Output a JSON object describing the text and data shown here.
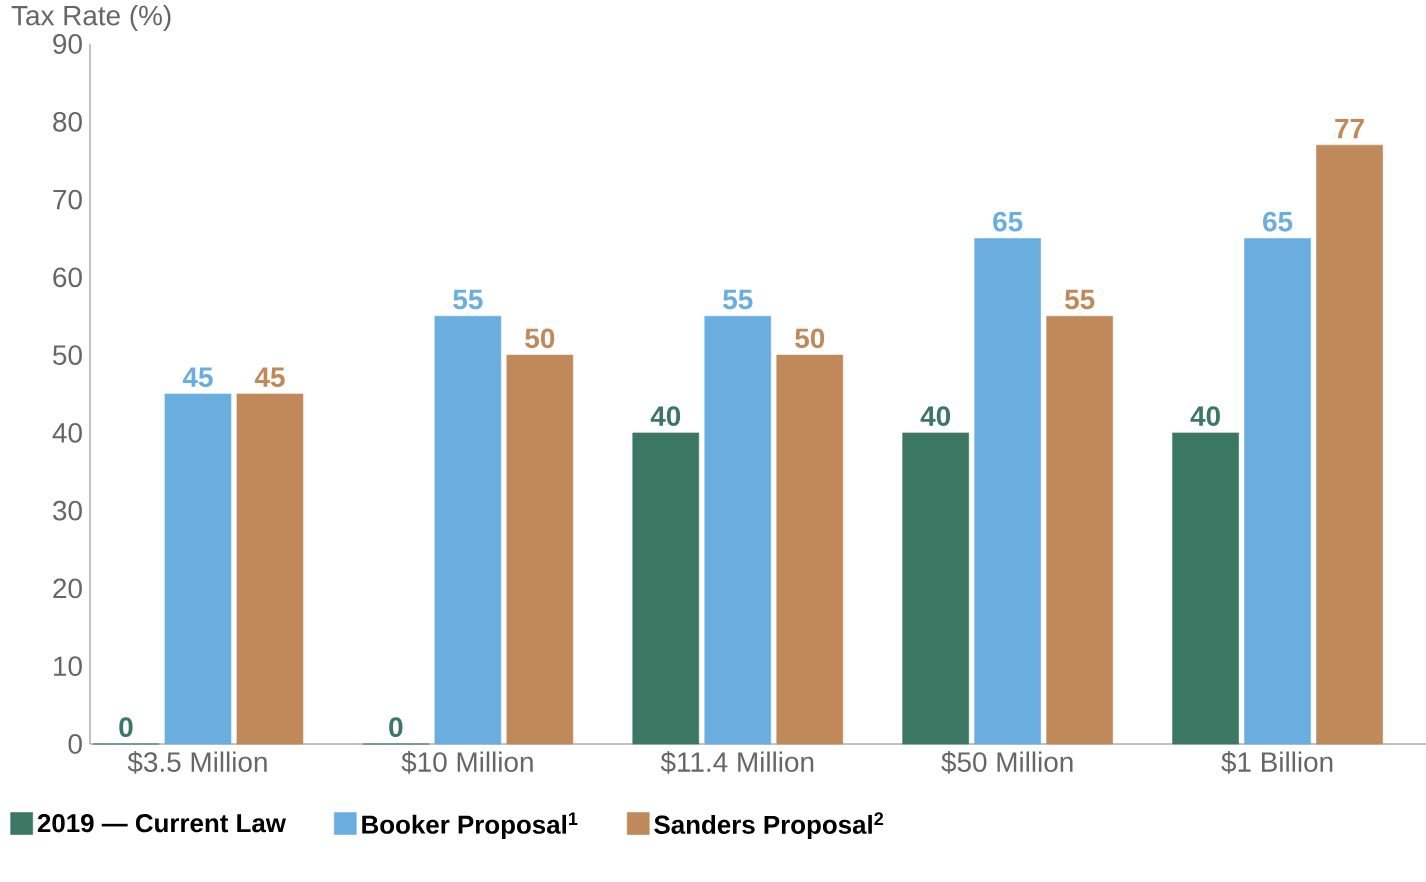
{
  "chart_data": {
    "type": "bar",
    "ylabel": "Tax Rate (%)",
    "categories": [
      "$3.5 Million",
      "$10 Million",
      "$11.4 Million",
      "$50 Million",
      "$1 Billion"
    ],
    "series": [
      {
        "name": "2019 — Current Law",
        "color": "#3b7763",
        "values": [
          0,
          0,
          40,
          40,
          40
        ]
      },
      {
        "name": "Booker Proposal$^{1}$",
        "color": "#6aaee0",
        "values": [
          45,
          55,
          55,
          65,
          65
        ]
      },
      {
        "name": "Sanders Proposal$^{2}$",
        "color": "#c0895a",
        "values": [
          45,
          50,
          50,
          55,
          77
        ]
      }
    ],
    "ylim": [
      0,
      90
    ],
    "yticks": [
      0,
      10,
      20,
      30,
      40,
      50,
      60,
      70,
      80,
      90
    ],
    "data_labels": true,
    "legend": "bottom left",
    "grid": false
  }
}
